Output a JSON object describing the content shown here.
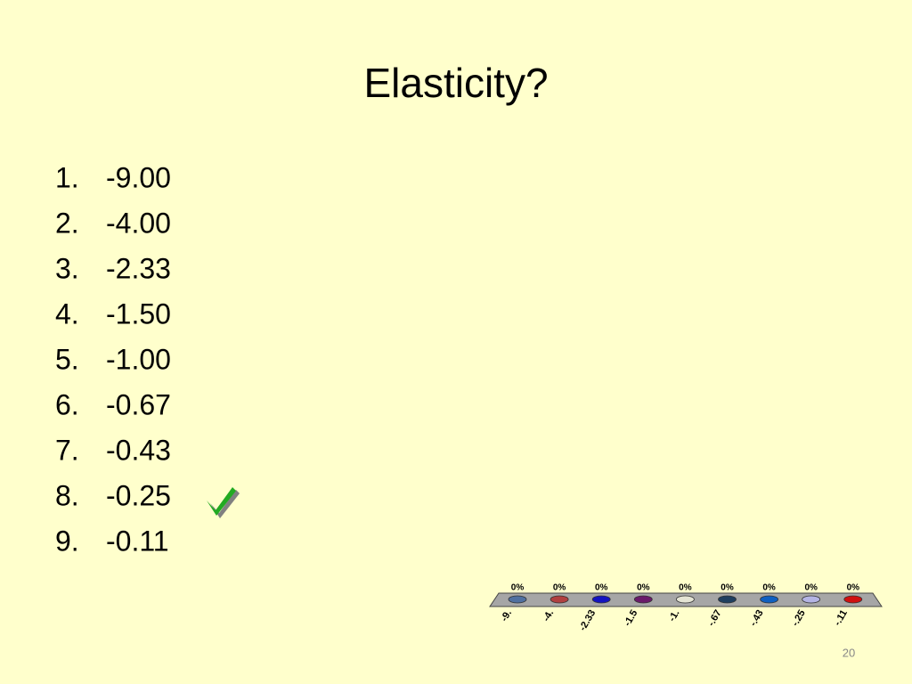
{
  "slide": {
    "title": "Elasticity?",
    "items": [
      {
        "number": "1.",
        "text": "-9.00"
      },
      {
        "number": "2.",
        "text": "-4.00"
      },
      {
        "number": "3.",
        "text": "-2.33"
      },
      {
        "number": "4.",
        "text": "-1.50"
      },
      {
        "number": "5.",
        "text": "-1.00"
      },
      {
        "number": "6.",
        "text": "-0.67"
      },
      {
        "number": "7.",
        "text": "-0.43"
      },
      {
        "number": "8.",
        "text": "-0.25"
      },
      {
        "number": "9.",
        "text": "-0.11"
      }
    ],
    "page_number": "20"
  },
  "chart_data": {
    "type": "bar",
    "categories": [
      "-9.",
      "-4.",
      "-2.33",
      "-1.5",
      "-1.",
      "-.67",
      "-.43",
      "-.25",
      "-.11"
    ],
    "values": [
      0,
      0,
      0,
      0,
      0,
      0,
      0,
      0,
      0
    ],
    "value_labels": [
      "0%",
      "0%",
      "0%",
      "0%",
      "0%",
      "0%",
      "0%",
      "0%",
      "0%"
    ],
    "colors": [
      "#5070a0",
      "#b04040",
      "#1414c0",
      "#6a1a6a",
      "#e4e4d4",
      "#1f3f5f",
      "#1060c0",
      "#b4b4e4",
      "#d01010"
    ]
  }
}
